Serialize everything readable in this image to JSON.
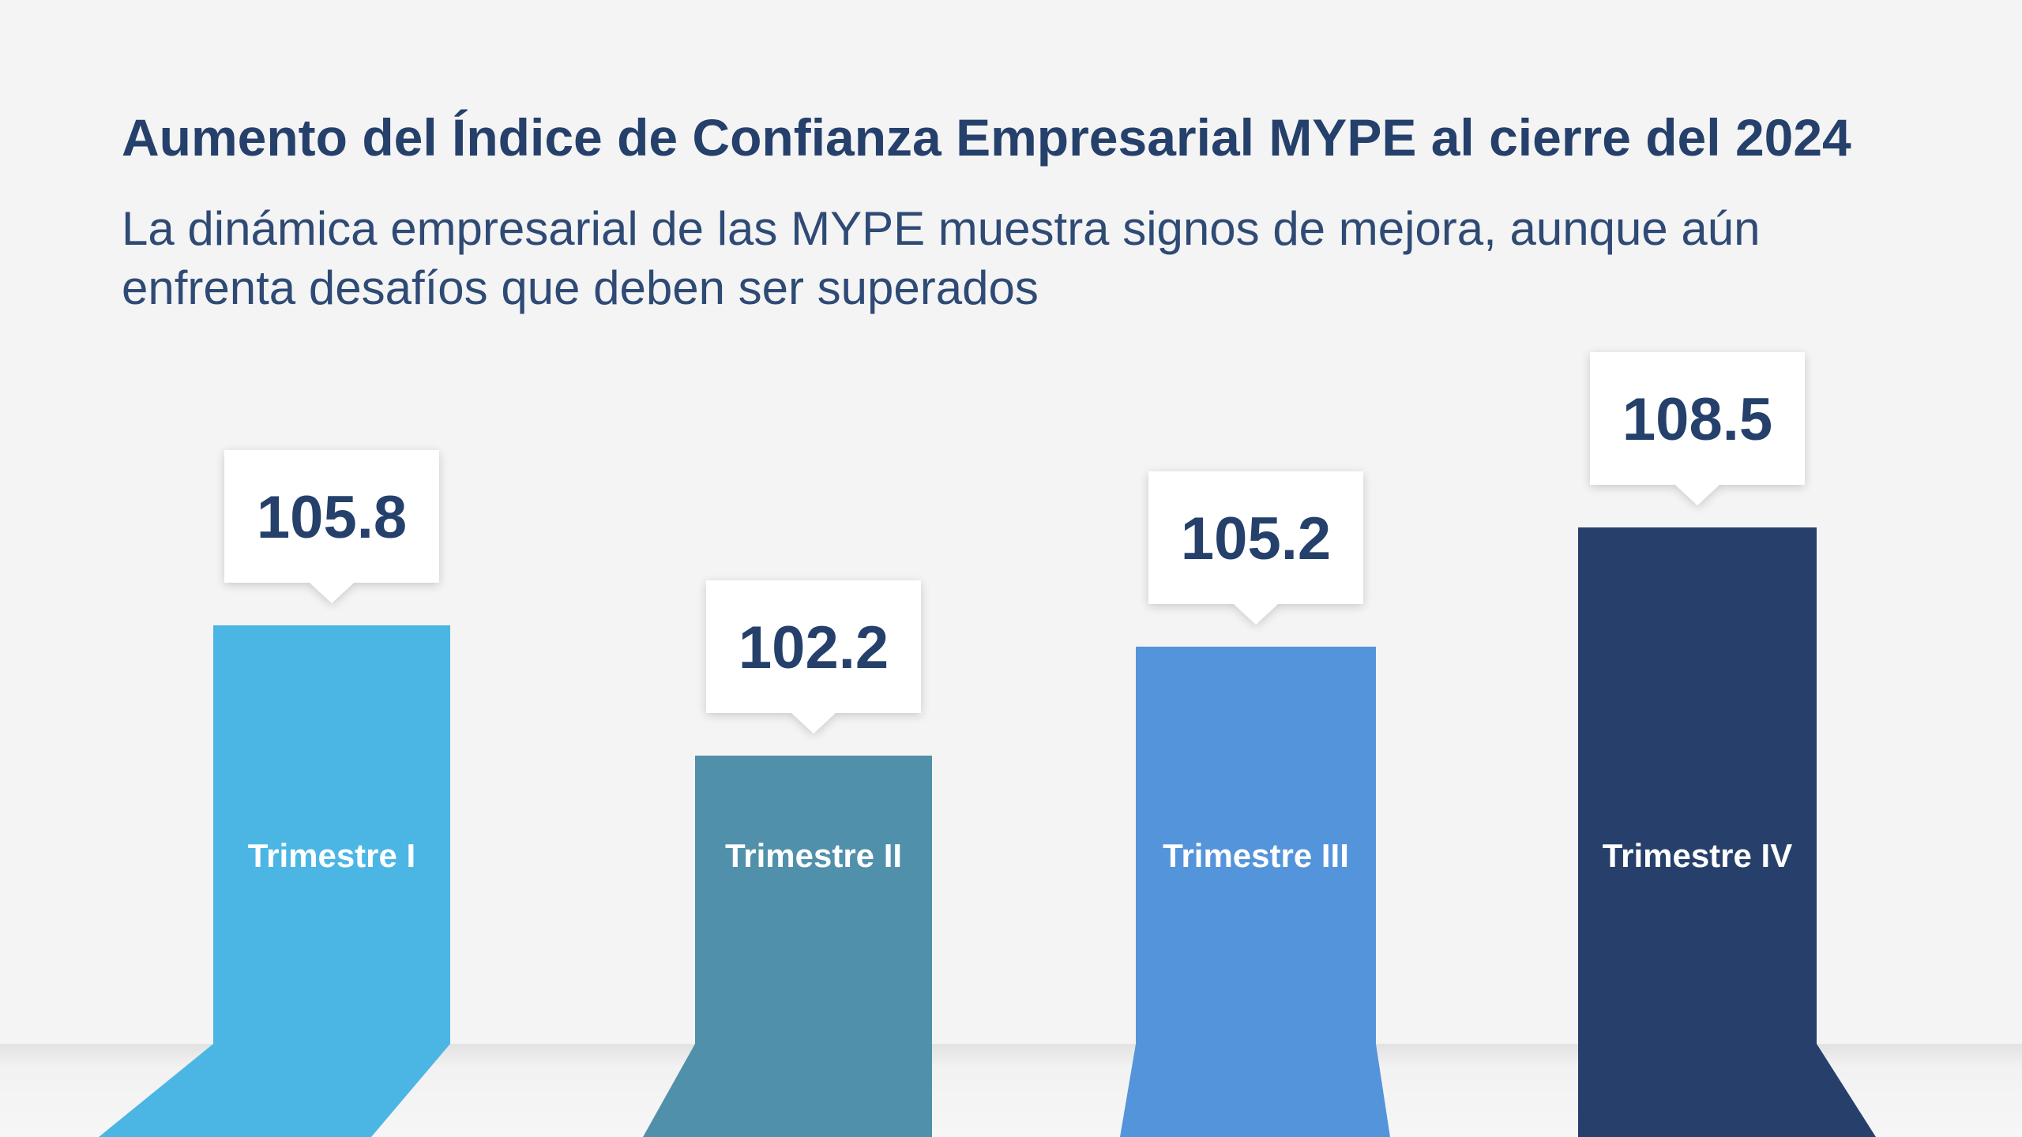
{
  "header": {
    "title": "Aumento del Índice de Confianza Empresarial MYPE al cierre del 2024",
    "subtitle": "La dinámica empresarial de las MYPE muestra signos de mejora, aunque aún enfrenta desafíos que deben ser superados"
  },
  "chart_data": {
    "type": "bar",
    "title": "Aumento del Índice de Confianza Empresarial MYPE al cierre del 2024",
    "subtitle": "La dinámica empresarial de las MYPE muestra signos de mejora, aunque aún enfrenta desafíos que deben ser superados",
    "categories": [
      "Trimestre I",
      "Trimestre II",
      "Trimestre III",
      "Trimestre IV"
    ],
    "values": [
      105.8,
      102.2,
      105.2,
      108.5
    ],
    "value_labels": [
      "105.8",
      "102.2",
      "105.2",
      "108.5"
    ],
    "colors": [
      "#4bb6e4",
      "#5090ab",
      "#5494db",
      "#26406b"
    ],
    "xlabel": "",
    "ylabel": "",
    "grid": false,
    "legend": "none"
  }
}
